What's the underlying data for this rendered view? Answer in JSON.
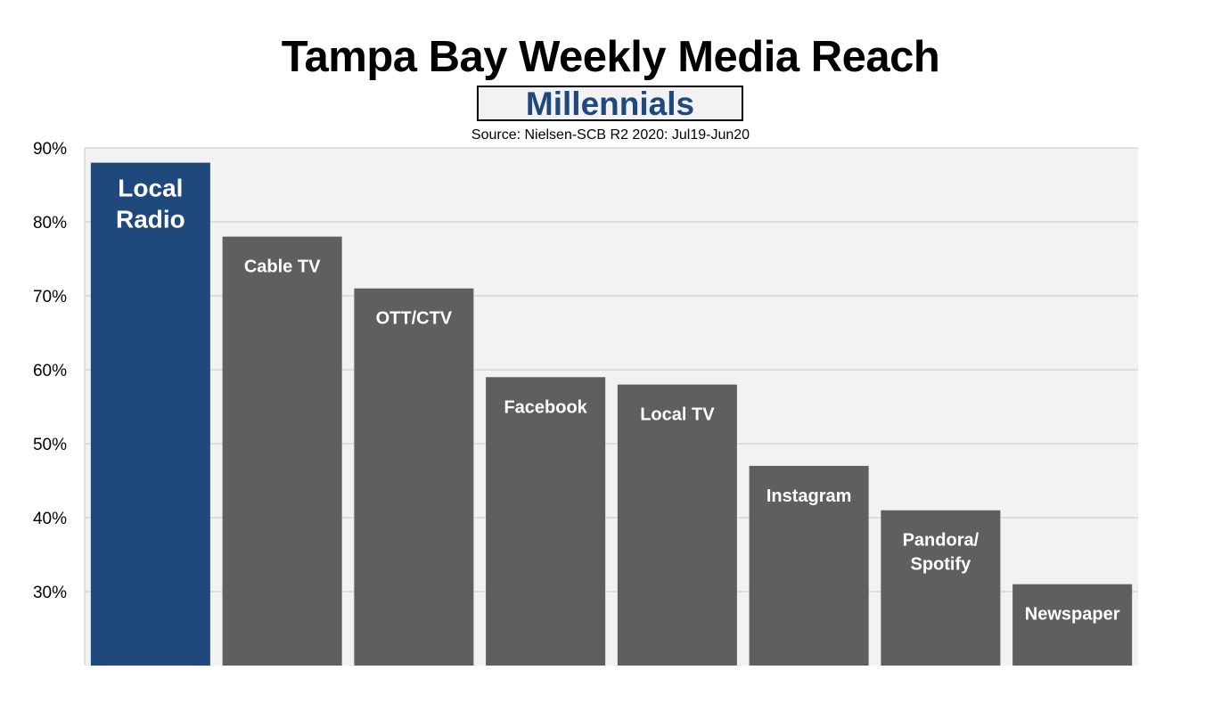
{
  "chart_data": {
    "type": "bar",
    "title": "Tampa Bay Weekly Media Reach",
    "subtitle": "Millennials",
    "source": "Source: Nielsen-SCB R2 2020: Jul19-Jun20",
    "categories": [
      {
        "label": [
          "Local",
          "Radio"
        ],
        "value": 88,
        "highlight": true
      },
      {
        "label": [
          "Cable TV"
        ],
        "value": 78,
        "highlight": false
      },
      {
        "label": [
          "OTT/CTV"
        ],
        "value": 71,
        "highlight": false
      },
      {
        "label": [
          "Facebook"
        ],
        "value": 59,
        "highlight": false
      },
      {
        "label": [
          "Local TV"
        ],
        "value": 58,
        "highlight": false
      },
      {
        "label": [
          "Instagram"
        ],
        "value": 47,
        "highlight": false
      },
      {
        "label": [
          "Pandora/",
          "Spotify"
        ],
        "value": 41,
        "highlight": false
      },
      {
        "label": [
          "Newspaper"
        ],
        "value": 31,
        "highlight": false
      }
    ],
    "ylim": [
      20,
      90
    ],
    "yticks": [
      30,
      40,
      50,
      60,
      70,
      80,
      90
    ],
    "ytick_labels": [
      "30%",
      "40%",
      "50%",
      "60%",
      "70%",
      "80%",
      "90%"
    ],
    "grid": true,
    "legend": "none",
    "colors": {
      "highlight": "#1f497d",
      "default": "#5f5f5f",
      "plot_background": "#f2f2f4",
      "grid": "#c8c8c8"
    }
  }
}
